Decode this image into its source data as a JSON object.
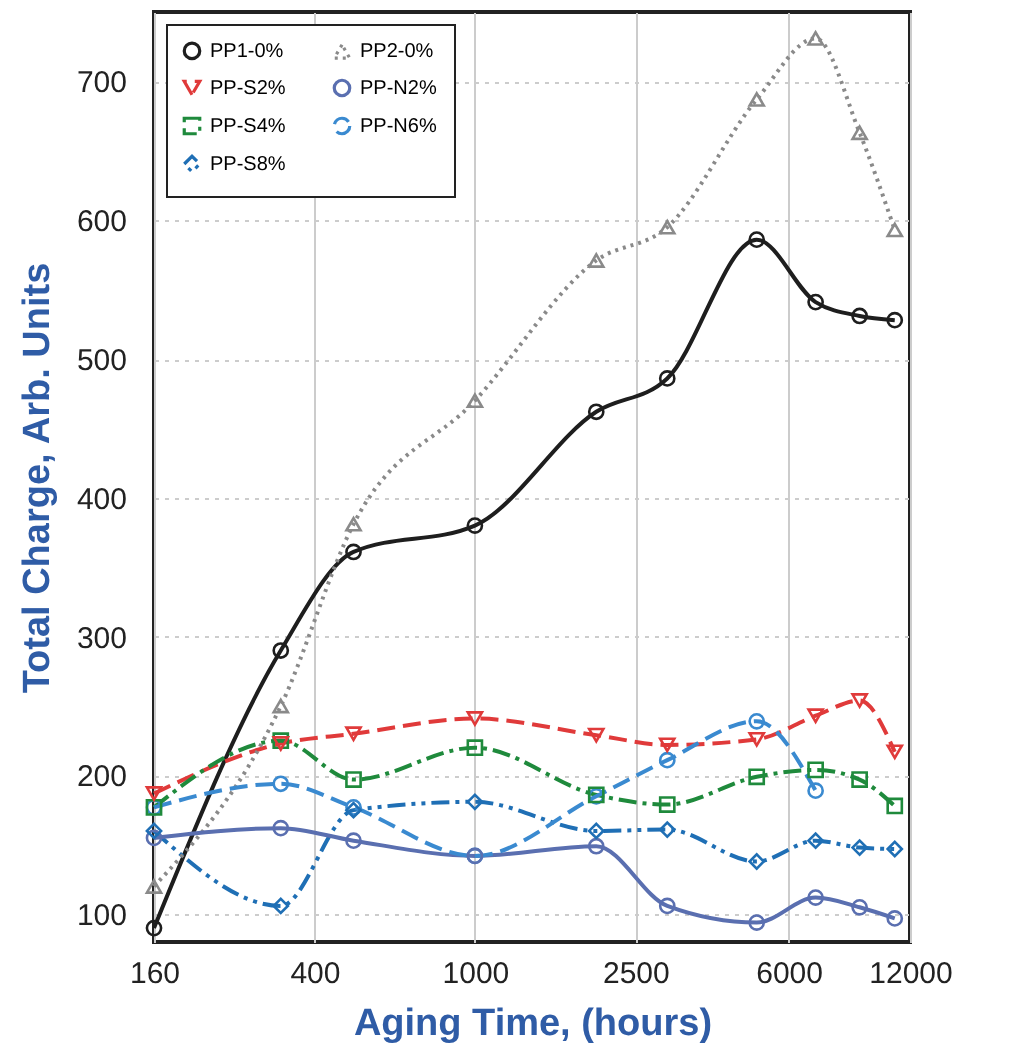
{
  "chart_data": {
    "type": "line",
    "xlabel": "Aging Time, (hours)",
    "ylabel": "Total Charge, Arb. Units",
    "log": "x",
    "grid": true,
    "legend": "top left",
    "x": [
      160,
      330,
      500,
      1000,
      2000,
      3000,
      5000,
      7000,
      9000,
      11000
    ],
    "xlim": [
      160,
      12000
    ],
    "xticks": [
      160,
      400,
      {
        "value": 1000,
        "label": "1000"
      },
      {
        "value": 2500,
        "label": "2500"
      },
      {
        "value": 6000,
        "label": "6000"
      },
      {
        "value": 12000,
        "label": "12000"
      }
    ],
    "ylim": [
      80,
      750
    ],
    "yticks": [
      100,
      200,
      300,
      400,
      500,
      600,
      700
    ],
    "series": [
      {
        "name": "PP1-0%",
        "color": "#1e1e1e",
        "marker": "circle",
        "line_style": "solid",
        "values": [
          90,
          290,
          361,
          380,
          462,
          486,
          586,
          541,
          531,
          528
        ]
      },
      {
        "name": "PP-S2%",
        "color": "#e03a3a",
        "marker": "triangle-down",
        "line_style": "dashed",
        "values": [
          187,
          223,
          230,
          241,
          229,
          222,
          226,
          243,
          254,
          217
        ]
      },
      {
        "name": "PP-S4%",
        "color": "#1f8a3c",
        "marker": "square",
        "line_style": "dashdot",
        "values": [
          177,
          225,
          197,
          220,
          186,
          179,
          199,
          204,
          197,
          178
        ]
      },
      {
        "name": "PP-S8%",
        "color": "#1f6fb5",
        "marker": "diamond",
        "line_style": "dashdotdot",
        "values": [
          160,
          106,
          175,
          181,
          160,
          161,
          138,
          153,
          148,
          147
        ]
      },
      {
        "name": "PP2-0%",
        "color": "#8a8a8a",
        "marker": "triangle",
        "line_style": "dotted",
        "values": [
          120,
          250,
          381,
          470,
          571,
          595,
          687,
          731,
          663,
          593
        ]
      },
      {
        "name": "PP-N2%",
        "color": "#5a6fb0",
        "marker": "circle",
        "line_style": "solid",
        "values": [
          155,
          162,
          153,
          142,
          149,
          106,
          94,
          112,
          105,
          97
        ]
      },
      {
        "name": "PP-N6%",
        "color": "#3a8ad0",
        "marker": "circle",
        "line_style": "dashed",
        "x": [
          160,
          330,
          500,
          1000,
          2000,
          3000,
          5000,
          7000
        ],
        "values": [
          177,
          194,
          177,
          142,
          185,
          211,
          239,
          189
        ]
      }
    ]
  }
}
